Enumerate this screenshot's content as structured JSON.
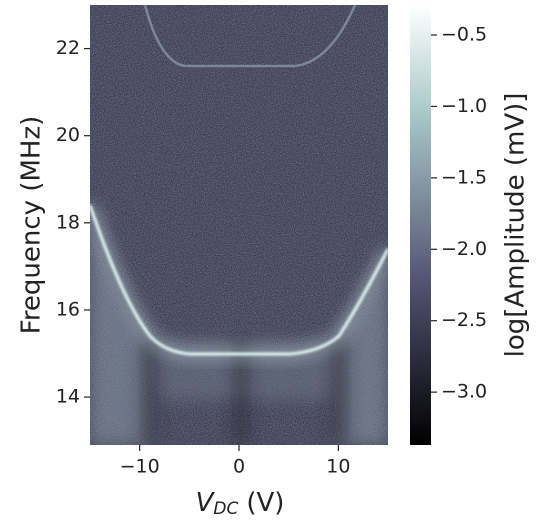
{
  "chart_data": {
    "type": "heatmap",
    "xlabel": {
      "main": "V",
      "sub": "DC",
      "unit": "(V)"
    },
    "ylabel": "Frequency (MHz)",
    "colorbar_label": "log[Amplitude (mV)]",
    "colormap": "bone",
    "xlim": [
      -15,
      15
    ],
    "ylim": [
      12.9,
      23.0
    ],
    "xticks": [
      {
        "value": -10,
        "label": "−10"
      },
      0,
      10
    ],
    "yticks": [
      14,
      16,
      18,
      20,
      22
    ],
    "clim": [
      -3.37,
      -0.29
    ],
    "cticks": [
      {
        "value": -3.0,
        "label": "−3.0"
      },
      {
        "value": -2.5,
        "label": "−2.5"
      },
      {
        "value": -2.0,
        "label": "−2.0"
      },
      {
        "value": -1.5,
        "label": "−1.5"
      },
      {
        "value": -1.0,
        "label": "−1.0"
      },
      {
        "value": -0.5,
        "label": "−0.5"
      }
    ]
  }
}
